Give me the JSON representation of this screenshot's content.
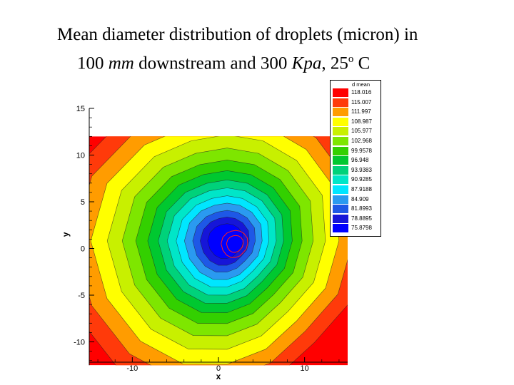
{
  "title": {
    "line1": "Mean diameter distribution of droplets (micron) in",
    "line2_value": "100 ",
    "line2_unit": "mm",
    "line2_mid": " downstream and 300 ",
    "line2_kpa": "Kpa",
    "line2_temp": ", 25",
    "line2_sup": "o",
    "line2_end": " C"
  },
  "chart_data": {
    "type": "heatmap",
    "title": "Mean diameter distribution of droplets (micron) in 100 mm downstream and 300 Kpa, 25o C",
    "xlabel": "x",
    "ylabel": "y",
    "xlim": [
      -15,
      15
    ],
    "ylim": [
      -12.5,
      15
    ],
    "data_region": {
      "x": [
        -15,
        15
      ],
      "y": [
        -12.5,
        12
      ]
    },
    "x_ticks": [
      -10,
      0,
      10
    ],
    "x_tick_labels": [
      "-10",
      "0",
      "10"
    ],
    "y_ticks": [
      15,
      10,
      5,
      0,
      -5,
      -10
    ],
    "y_tick_labels": [
      "15",
      "10",
      "5",
      "0",
      "-5",
      "-10"
    ],
    "legend_title": "d mean",
    "legend_position": "top-right",
    "levels": [
      {
        "label": "118.016",
        "value": 118.016,
        "color": "#ff0000"
      },
      {
        "label": "115.007",
        "value": 115.007,
        "color": "#ff3a0a"
      },
      {
        "label": "111.997",
        "value": 111.997,
        "color": "#ff9c00"
      },
      {
        "label": "108.987",
        "value": 108.987,
        "color": "#ffff00"
      },
      {
        "label": "105.977",
        "value": 105.977,
        "color": "#c8f000"
      },
      {
        "label": "102.968",
        "value": 102.968,
        "color": "#7ee600"
      },
      {
        "label": "99.9578",
        "value": 99.9578,
        "color": "#33d000"
      },
      {
        "label": "96.948",
        "value": 96.948,
        "color": "#00c830"
      },
      {
        "label": "93.9383",
        "value": 93.9383,
        "color": "#00d27a"
      },
      {
        "label": "90.9285",
        "value": 90.9285,
        "color": "#00e6c8"
      },
      {
        "label": "87.9188",
        "value": 87.9188,
        "color": "#00e6ff"
      },
      {
        "label": "84.909",
        "value": 84.909,
        "color": "#2a9af0"
      },
      {
        "label": "81.8993",
        "value": 81.8993,
        "color": "#1e58e6"
      },
      {
        "label": "78.8895",
        "value": 78.8895,
        "color": "#1616d8"
      },
      {
        "label": "75.8798",
        "value": 75.8798,
        "color": "#0000ff"
      }
    ],
    "minimum": {
      "x": 2,
      "y": 0.5,
      "value": 75.8798
    },
    "grid": false
  }
}
